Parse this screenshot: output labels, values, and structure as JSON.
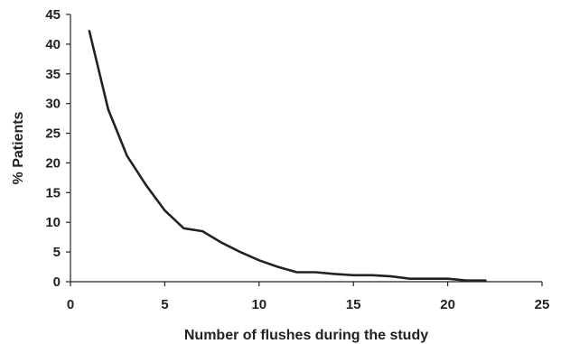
{
  "chart_data": {
    "type": "line",
    "title": "",
    "xlabel": "Number of flushes during the study",
    "ylabel": "% Patients",
    "xlim": [
      0,
      25
    ],
    "ylim": [
      0,
      45
    ],
    "xticks": [
      0,
      5,
      10,
      15,
      20,
      25
    ],
    "yticks": [
      0,
      5,
      10,
      15,
      20,
      25,
      30,
      35,
      40,
      45
    ],
    "grid": false,
    "legend": "none",
    "series": [
      {
        "color": "#222222",
        "points": [
          {
            "x": 1,
            "y": 42.2
          },
          {
            "x": 2,
            "y": 29.0
          },
          {
            "x": 3,
            "y": 21.2
          },
          {
            "x": 4,
            "y": 16.3
          },
          {
            "x": 5,
            "y": 12.0
          },
          {
            "x": 6,
            "y": 9.0
          },
          {
            "x": 7,
            "y": 8.5
          },
          {
            "x": 8,
            "y": 6.6
          },
          {
            "x": 9,
            "y": 5.0
          },
          {
            "x": 10,
            "y": 3.6
          },
          {
            "x": 11,
            "y": 2.5
          },
          {
            "x": 12,
            "y": 1.6
          },
          {
            "x": 13,
            "y": 1.6
          },
          {
            "x": 14,
            "y": 1.3
          },
          {
            "x": 15,
            "y": 1.1
          },
          {
            "x": 16,
            "y": 1.1
          },
          {
            "x": 17,
            "y": 0.9
          },
          {
            "x": 18,
            "y": 0.5
          },
          {
            "x": 19,
            "y": 0.5
          },
          {
            "x": 20,
            "y": 0.5
          },
          {
            "x": 21,
            "y": 0.2
          },
          {
            "x": 22,
            "y": 0.2
          }
        ]
      }
    ]
  }
}
